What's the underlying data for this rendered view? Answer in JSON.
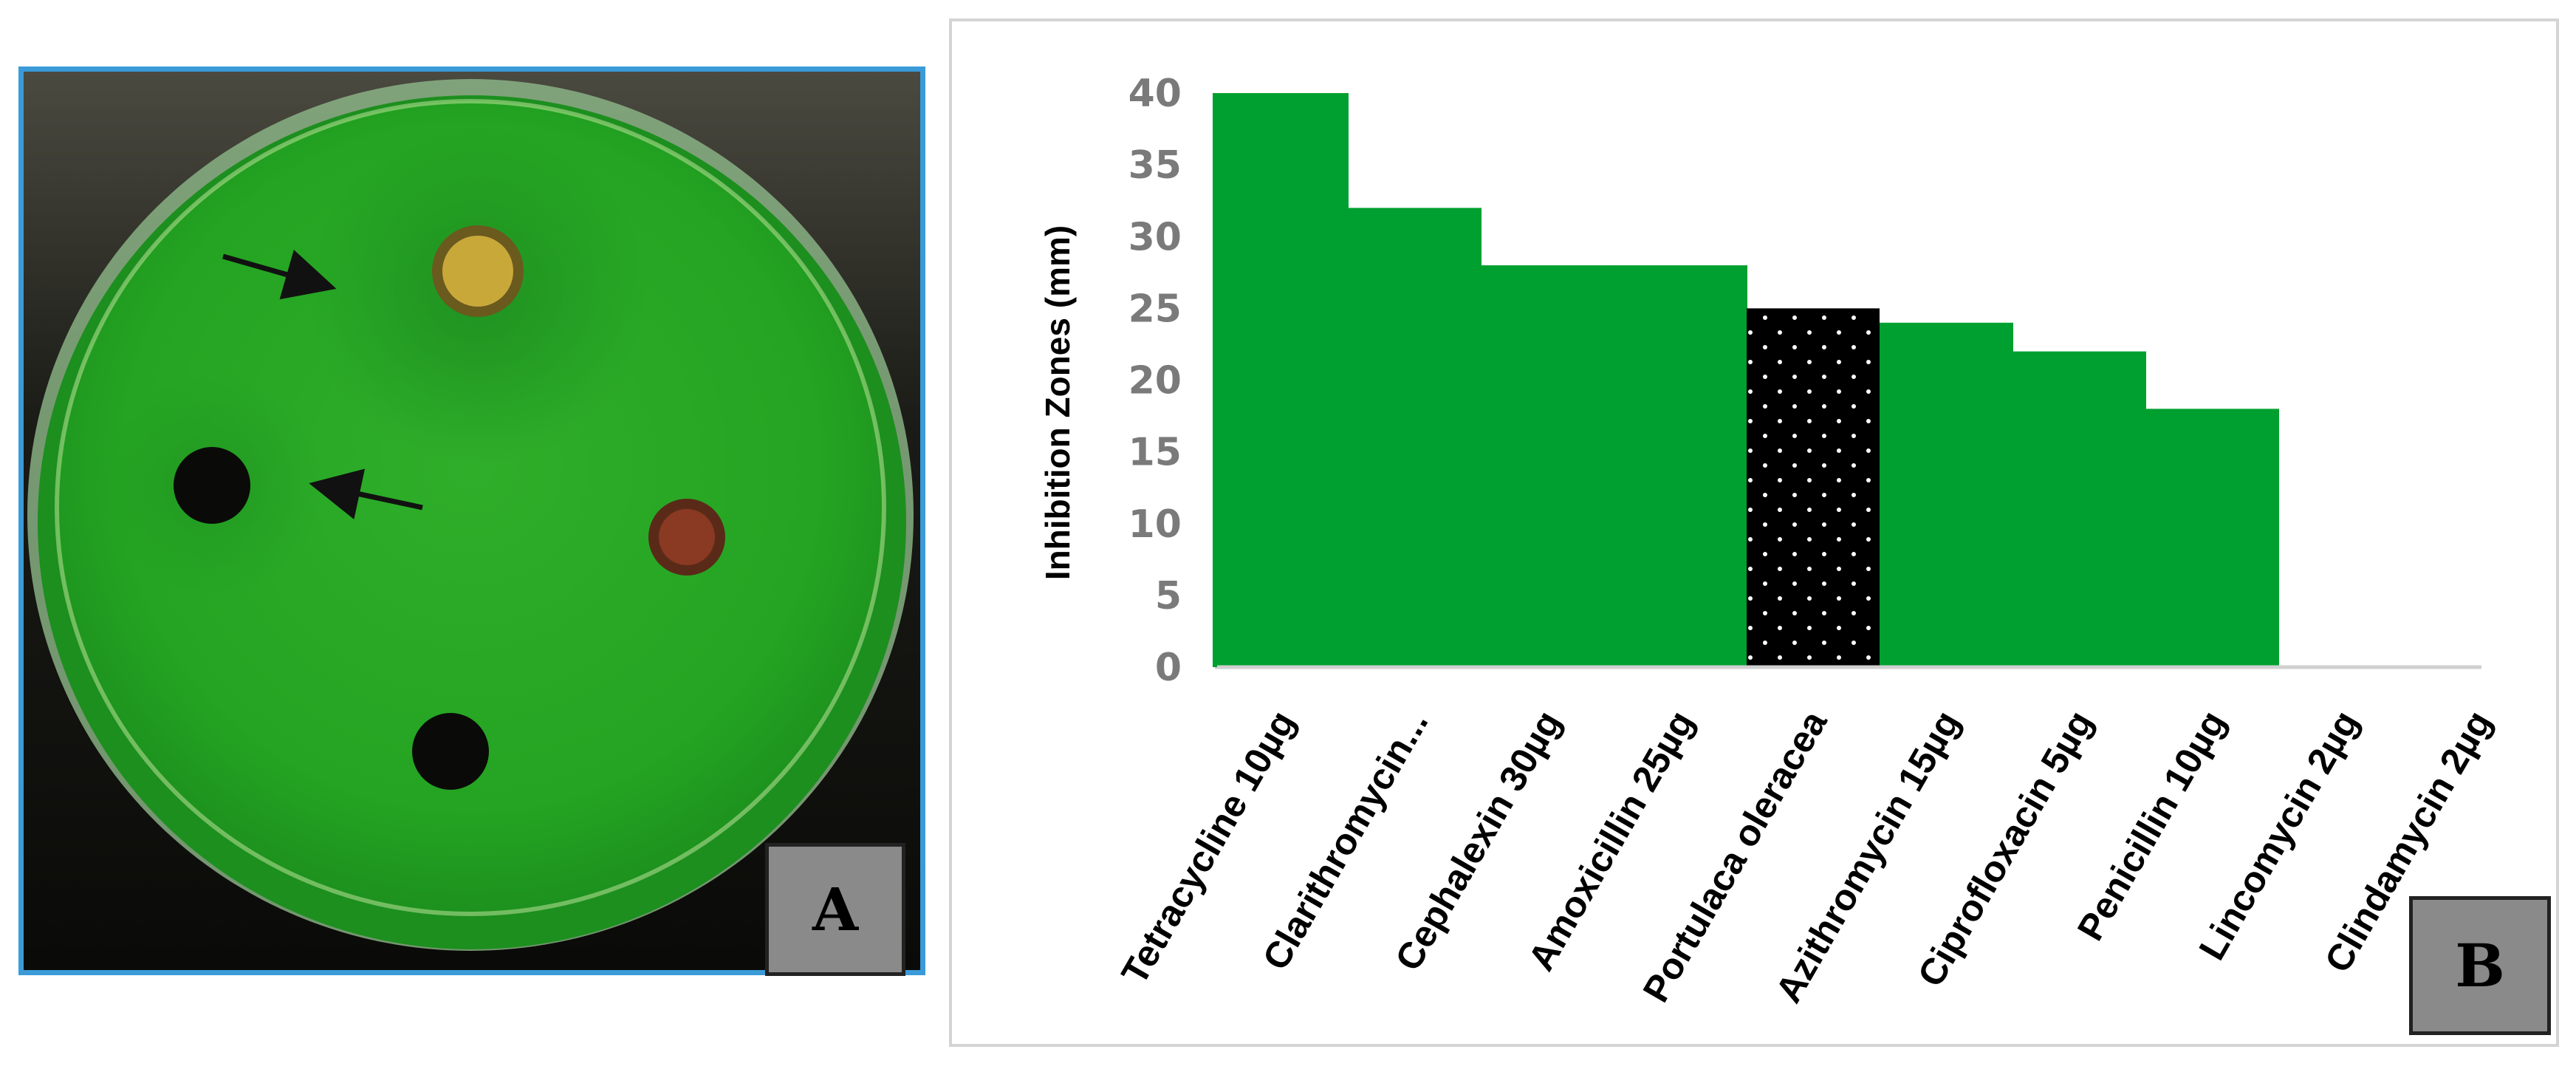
{
  "panel_a": {
    "label": "A"
  },
  "panel_b": {
    "label": "B"
  },
  "colors": {
    "bar_green": "#00a030",
    "highlight_black": "#000000",
    "dot_white": "#ffffff",
    "tick_gray": "#7a7a7a"
  },
  "chart_data": {
    "type": "bar",
    "ylabel": "Inhibition Zones (mm)",
    "ylim": [
      0,
      40
    ],
    "yticks": [
      0,
      5,
      10,
      15,
      20,
      25,
      30,
      35,
      40
    ],
    "grid": false,
    "categories": [
      "Tetracycline 10µg",
      "Clarithromycin...",
      "Cephalexin 30µg",
      "Amoxicillin 25µg",
      "Portulaca oleracea",
      "Azithromycin 15µg",
      "Ciprofloxacin 5µg",
      "Penicillin 10µg",
      "Lincomycin 2µg",
      "Clindamycin 2µg"
    ],
    "values": [
      40,
      32,
      28,
      28,
      25,
      24,
      22,
      18,
      0,
      0
    ],
    "highlight_category": "Portulaca oleracea"
  }
}
